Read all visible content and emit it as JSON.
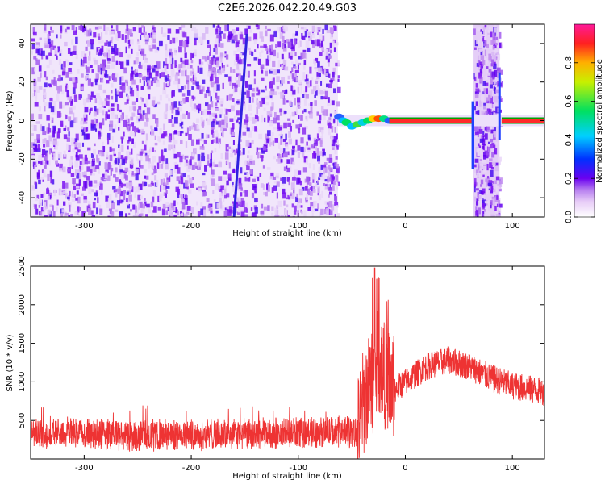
{
  "title": "C2E6.2026.042.20.49.G03",
  "chart_data": [
    {
      "type": "heatmap",
      "xlabel": "Height of straight line (km)",
      "ylabel": "Frequency (Hz)",
      "xlim": [
        -350,
        130
      ],
      "ylim": [
        -50,
        50
      ],
      "xticks": [
        -300,
        -200,
        -100,
        0,
        100
      ],
      "yticks": [
        -40,
        -20,
        0,
        20,
        40
      ],
      "colorbar": {
        "label": "Normalized spectral amplitude",
        "range": [
          0,
          1
        ],
        "ticks": [
          0.0,
          0.2,
          0.4,
          0.6,
          0.8
        ],
        "tick_labels": [
          "0.0",
          "0.2",
          "0.4",
          "0.6",
          "0.8"
        ]
      },
      "features": {
        "noise_band_x": [
          -350,
          -63
        ],
        "noise_band2_x": [
          63,
          88
        ],
        "diagonal_streak": {
          "x_start": -160,
          "freq_start": -50,
          "x_end": -148,
          "freq_end": 45
        },
        "signal_line_freq": 0,
        "signal_x": [
          -63,
          130
        ]
      }
    },
    {
      "type": "line",
      "xlabel": "Height of straight line (km)",
      "ylabel": "SNR (10 * v/v)",
      "xlim": [
        -350,
        130
      ],
      "ylim": [
        0,
        2500
      ],
      "xticks": [
        -300,
        -200,
        -100,
        0,
        100
      ],
      "yticks": [
        500,
        1000,
        1500,
        2000,
        2500
      ],
      "color": "#ee3333",
      "series": [
        {
          "x": [
            -350,
            -300,
            -250,
            -200,
            -150,
            -100,
            -60,
            -45,
            -40,
            -35,
            -30,
            -25,
            -20,
            -15,
            -10,
            0,
            20,
            40,
            60,
            80,
            100,
            130
          ],
          "y": [
            330,
            340,
            300,
            310,
            320,
            340,
            350,
            340,
            700,
            900,
            1000,
            1300,
            1100,
            1000,
            900,
            1000,
            1200,
            1280,
            1200,
            1050,
            950,
            870
          ]
        }
      ]
    }
  ]
}
